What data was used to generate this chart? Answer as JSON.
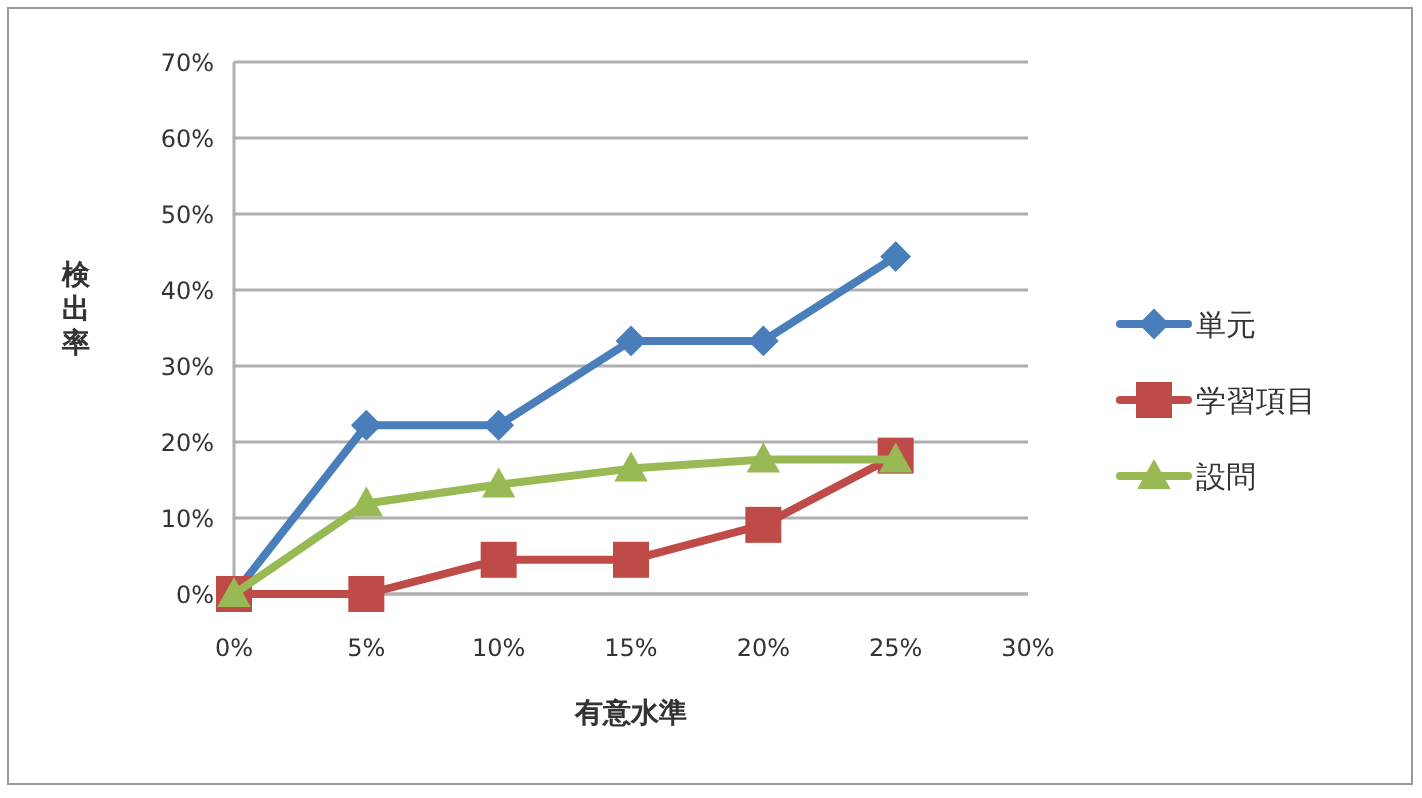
{
  "chart_data": {
    "type": "line",
    "xlabel": "有意水準",
    "ylabel": "検出率",
    "x": [
      0,
      5,
      10,
      15,
      20,
      25
    ],
    "series": [
      {
        "name": "単元",
        "color": "#4a7ebb",
        "marker": "diamond",
        "values": [
          0,
          22.2,
          22.2,
          33.3,
          33.3,
          44.4
        ]
      },
      {
        "name": "学習項目",
        "color": "#be4b48",
        "marker": "square",
        "values": [
          0,
          0,
          4.5,
          4.5,
          9.1,
          18.2
        ]
      },
      {
        "name": "設問",
        "color": "#98b954",
        "marker": "triangle",
        "values": [
          0,
          11.9,
          14.4,
          16.5,
          17.7,
          17.7
        ]
      }
    ],
    "xlim": [
      0,
      30
    ],
    "ylim": [
      0,
      70
    ],
    "xticks": [
      {
        "value": 0,
        "label": "0%"
      },
      {
        "value": 5,
        "label": "5%"
      },
      {
        "value": 10,
        "label": "10%"
      },
      {
        "value": 15,
        "label": "15%"
      },
      {
        "value": 20,
        "label": "20%"
      },
      {
        "value": 25,
        "label": "25%"
      },
      {
        "value": 30,
        "label": "30%"
      }
    ],
    "yticks": [
      {
        "value": 0,
        "label": "0%"
      },
      {
        "value": 10,
        "label": "10%"
      },
      {
        "value": 20,
        "label": "20%"
      },
      {
        "value": 30,
        "label": "30%"
      },
      {
        "value": 40,
        "label": "40%"
      },
      {
        "value": 50,
        "label": "50%"
      },
      {
        "value": 60,
        "label": "60%"
      },
      {
        "value": 70,
        "label": "70%"
      }
    ],
    "grid": "y",
    "legend": "right",
    "line_style": "solid"
  }
}
